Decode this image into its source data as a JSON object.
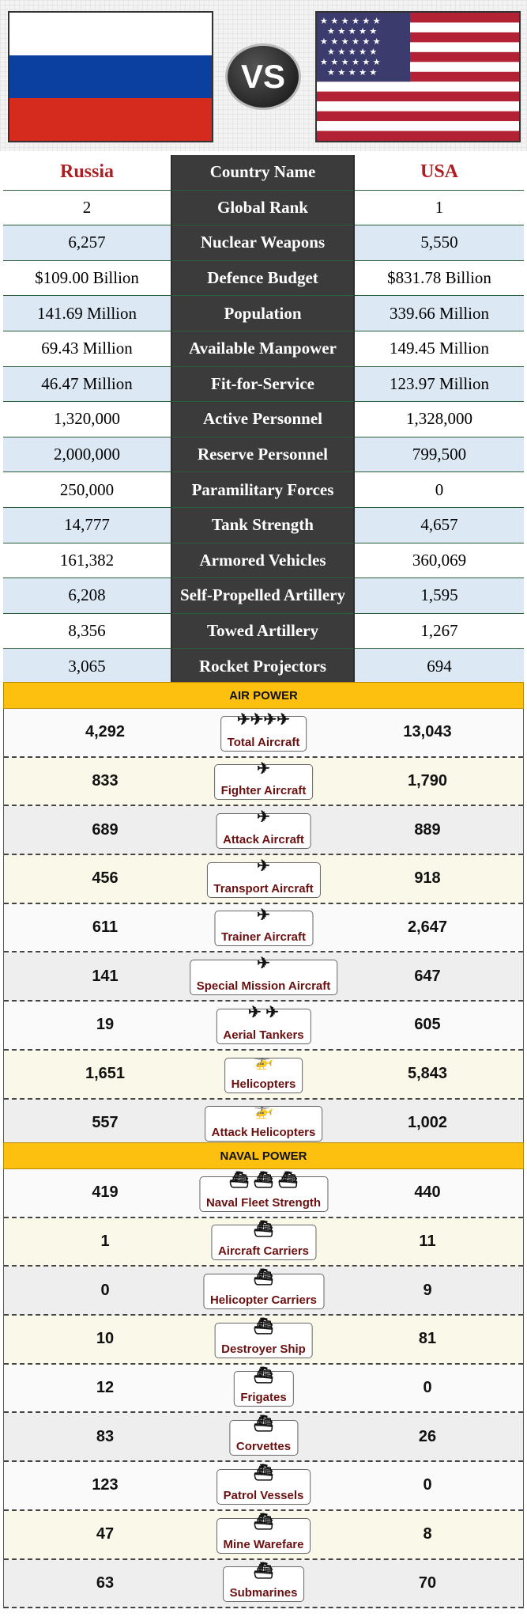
{
  "header": {
    "vs_label": "VS",
    "left_flag": "russia-flag",
    "right_flag": "usa-flag",
    "colors": {
      "ru_white": "#ffffff",
      "ru_blue": "#0b3fa0",
      "ru_red": "#d52b1e",
      "us_red": "#b22234",
      "us_blue": "#3c3b6e"
    }
  },
  "stats": {
    "header": {
      "left": "Russia",
      "middle": "Country Name",
      "right": "USA"
    },
    "rows": [
      {
        "left": "2",
        "label": "Global Rank",
        "right": "1"
      },
      {
        "left": "6,257",
        "label": "Nuclear Weapons",
        "right": "5,550"
      },
      {
        "left": "$109.00 Billion",
        "label": "Defence Budget",
        "right": "$831.78 Billion"
      },
      {
        "left": "141.69 Million",
        "label": "Population",
        "right": "339.66 Million"
      },
      {
        "left": "69.43 Million",
        "label": "Available Manpower",
        "right": "149.45 Million"
      },
      {
        "left": "46.47 Million",
        "label": "Fit-for-Service",
        "right": "123.97 Million"
      },
      {
        "left": "1,320,000",
        "label": "Active Personnel",
        "right": "1,328,000"
      },
      {
        "left": "2,000,000",
        "label": "Reserve Personnel",
        "right": "799,500"
      },
      {
        "left": "250,000",
        "label": "Paramilitary Forces",
        "right": "0"
      },
      {
        "left": "14,777",
        "label": "Tank Strength",
        "right": "4,657"
      },
      {
        "left": "161,382",
        "label": "Armored Vehicles",
        "right": "360,069"
      },
      {
        "left": "6,208",
        "label": "Self-Propelled Artillery",
        "right": "1,595"
      },
      {
        "left": "8,356",
        "label": "Towed Artillery",
        "right": "1,267"
      },
      {
        "left": "3,065",
        "label": "Rocket Projectors",
        "right": "694"
      }
    ]
  },
  "air": {
    "title": "AIR POWER",
    "rows": [
      {
        "left": "4,292",
        "label": "Total Aircraft",
        "right": "13,043",
        "icon": "✈✈✈✈"
      },
      {
        "left": "833",
        "label": "Fighter Aircraft",
        "right": "1,790",
        "icon": "✈"
      },
      {
        "left": "689",
        "label": "Attack Aircraft",
        "right": "889",
        "icon": "✈"
      },
      {
        "left": "456",
        "label": "Transport Aircraft",
        "right": "918",
        "icon": "✈"
      },
      {
        "left": "611",
        "label": "Trainer Aircraft",
        "right": "2,647",
        "icon": "✈"
      },
      {
        "left": "141",
        "label": "Special Mission Aircraft",
        "right": "647",
        "icon": "✈"
      },
      {
        "left": "19",
        "label": "Aerial Tankers",
        "right": "605",
        "icon": "✈ ✈"
      },
      {
        "left": "1,651",
        "label": "Helicopters",
        "right": "5,843",
        "icon": "🚁"
      },
      {
        "left": "557",
        "label": "Attack Helicopters",
        "right": "1,002",
        "icon": "🚁"
      }
    ]
  },
  "naval": {
    "title": "NAVAL POWER",
    "rows": [
      {
        "left": "419",
        "label": "Naval Fleet Strength",
        "right": "440",
        "icon": "⛴ ⛴ ⛴"
      },
      {
        "left": "1",
        "label": "Aircraft Carriers",
        "right": "11",
        "icon": "⛴"
      },
      {
        "left": "0",
        "label": "Helicopter Carriers",
        "right": "9",
        "icon": "⛴"
      },
      {
        "left": "10",
        "label": "Destroyer Ship",
        "right": "81",
        "icon": "⛴"
      },
      {
        "left": "12",
        "label": "Frigates",
        "right": "0",
        "icon": "⛴"
      },
      {
        "left": "83",
        "label": "Corvettes",
        "right": "26",
        "icon": "⛴"
      },
      {
        "left": "123",
        "label": "Patrol Vessels",
        "right": "0",
        "icon": "⛴"
      },
      {
        "left": "47",
        "label": "Mine Warefare",
        "right": "8",
        "icon": "⛴"
      },
      {
        "left": "63",
        "label": "Submarines",
        "right": "70",
        "icon": "⛴"
      }
    ]
  }
}
